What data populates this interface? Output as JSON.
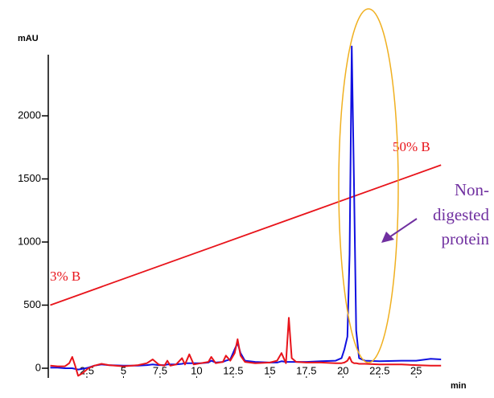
{
  "chart_data": {
    "type": "line",
    "ylabel": "mAU",
    "xlabel": "min",
    "xlim": [
      0,
      26.8
    ],
    "ylim": [
      -60,
      2450
    ],
    "xticks": [
      2.5,
      5,
      7.5,
      10,
      12.5,
      15,
      17.5,
      20,
      22.5,
      25
    ],
    "yticks": [
      0,
      500,
      1000,
      1500,
      2000
    ],
    "x": [
      0,
      0.5,
      1,
      1.3,
      1.5,
      1.7,
      1.9,
      2.2,
      2.6,
      3,
      3.5,
      4,
      5,
      6,
      6.6,
      7,
      7.4,
      7.8,
      8,
      8.2,
      8.6,
      9,
      9.2,
      9.5,
      9.8,
      10.3,
      10.8,
      11,
      11.3,
      11.8,
      12,
      12.3,
      12.6,
      12.8,
      13,
      13.3,
      14,
      15,
      15.5,
      15.8,
      16.1,
      16.3,
      16.5,
      16.8,
      17.5,
      18.5,
      19.5,
      19.9,
      20.1,
      20.3,
      20.45,
      20.6,
      20.75,
      20.9,
      21.1,
      21.5,
      22.5,
      24,
      25,
      26,
      26.7
    ],
    "series": [
      {
        "color": "#1010e0",
        "values": [
          5,
          5,
          0,
          0,
          0,
          -5,
          -10,
          -5,
          5,
          20,
          30,
          25,
          20,
          20,
          25,
          30,
          25,
          25,
          30,
          30,
          30,
          35,
          40,
          40,
          40,
          40,
          45,
          60,
          45,
          50,
          60,
          70,
          150,
          200,
          120,
          60,
          50,
          45,
          45,
          55,
          50,
          50,
          50,
          50,
          50,
          55,
          60,
          80,
          150,
          250,
          900,
          2550,
          1500,
          300,
          80,
          60,
          55,
          60,
          60,
          75,
          70
        ]
      },
      {
        "color": "#e8141b",
        "values": [
          20,
          15,
          15,
          40,
          90,
          20,
          -60,
          -40,
          0,
          20,
          35,
          25,
          15,
          25,
          40,
          70,
          30,
          20,
          60,
          20,
          30,
          80,
          30,
          110,
          30,
          40,
          50,
          90,
          40,
          50,
          100,
          60,
          120,
          230,
          100,
          50,
          40,
          45,
          60,
          120,
          40,
          400,
          80,
          50,
          45,
          45,
          40,
          40,
          45,
          60,
          90,
          50,
          40,
          40,
          35,
          35,
          30,
          30,
          25,
          20,
          20
        ]
      }
    ],
    "gradient": {
      "color": "#e8141b",
      "x": [
        0,
        26.7
      ],
      "values": [
        500,
        1610
      ],
      "start_label": "3% B",
      "end_label": "50% B"
    },
    "annotation": {
      "lines": [
        "Non-",
        "digested",
        "protein"
      ],
      "color": "#7030a0",
      "ellipse_color": "#f0b020"
    }
  }
}
